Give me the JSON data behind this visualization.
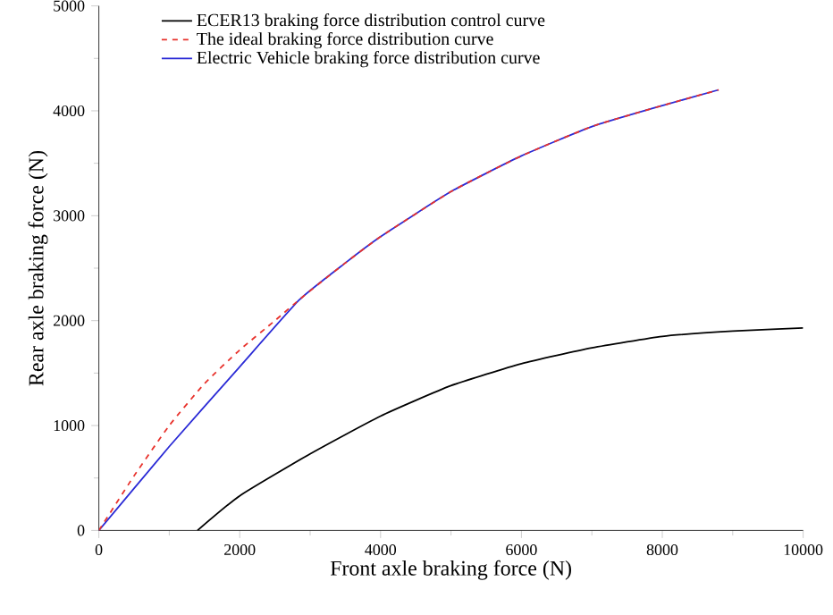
{
  "chart_data": {
    "type": "line",
    "xlabel": "Front axle braking force (N)",
    "ylabel": "Rear axle braking force (N)",
    "xlim": [
      0,
      10000
    ],
    "ylim": [
      0,
      5000
    ],
    "xticks": [
      0,
      2000,
      4000,
      6000,
      8000,
      10000
    ],
    "yticks": [
      0,
      1000,
      2000,
      3000,
      4000,
      5000
    ],
    "grid": false,
    "legend": "top left",
    "marker": "none",
    "series": [
      {
        "name": "ECER13 braking force distribution control curve",
        "color": "#000000",
        "line_style": "solid",
        "x": [
          1400,
          2000,
          3000,
          4000,
          5000,
          6000,
          7000,
          8000,
          9000,
          10000
        ],
        "values": [
          0,
          330,
          730,
          1090,
          1380,
          1590,
          1740,
          1850,
          1900,
          1930
        ]
      },
      {
        "name": "The ideal braking force distribution curve",
        "color": "#e8322c",
        "line_style": "dashed",
        "x": [
          0,
          500,
          1000,
          1500,
          2000,
          2500,
          2900,
          3500,
          4000,
          5000,
          6000,
          7000,
          8000,
          8800
        ],
        "values": [
          0,
          520,
          1000,
          1400,
          1720,
          2000,
          2230,
          2550,
          2800,
          3230,
          3570,
          3850,
          4050,
          4200
        ]
      },
      {
        "name": "Electric Vehicle braking force distribution curve",
        "color": "#2b2bd6",
        "line_style": "solid",
        "x": [
          0,
          1000,
          2000,
          2850,
          3500,
          4000,
          5000,
          6000,
          7000,
          8000,
          8800
        ],
        "values": [
          0,
          800,
          1560,
          2200,
          2550,
          2800,
          3230,
          3570,
          3850,
          4050,
          4200
        ]
      }
    ]
  }
}
